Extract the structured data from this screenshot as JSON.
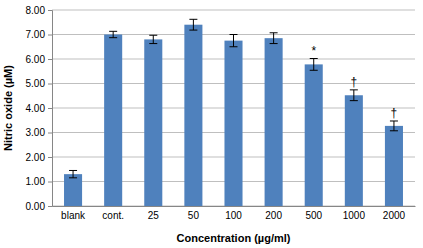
{
  "chart_data": {
    "type": "bar",
    "x_label": "Concentration (µg/ml)",
    "y_label": "Nitric oxide (µM)",
    "categories": [
      "blank",
      "cont.",
      "25",
      "50",
      "100",
      "200",
      "500",
      "1000",
      "2000"
    ],
    "values": [
      1.3,
      7.0,
      6.8,
      7.4,
      6.75,
      6.85,
      5.78,
      4.52,
      3.27
    ],
    "errors": [
      0.15,
      0.13,
      0.17,
      0.22,
      0.25,
      0.22,
      0.24,
      0.22,
      0.2
    ],
    "annotations": [
      null,
      null,
      null,
      null,
      null,
      null,
      "*",
      "†",
      "†"
    ],
    "color": "#4f81bd",
    "ylim": [
      0,
      8
    ],
    "yticks": [
      {
        "value": 0,
        "label": "0.00"
      },
      {
        "value": 1,
        "label": "1.00"
      },
      {
        "value": 2,
        "label": "2.00"
      },
      {
        "value": 3,
        "label": "3.00"
      },
      {
        "value": 4,
        "label": "4.00"
      },
      {
        "value": 5,
        "label": "5.00"
      },
      {
        "value": 6,
        "label": "6.00"
      },
      {
        "value": 7,
        "label": "7.00"
      },
      {
        "value": 8,
        "label": "8.00"
      }
    ],
    "grid": true
  }
}
